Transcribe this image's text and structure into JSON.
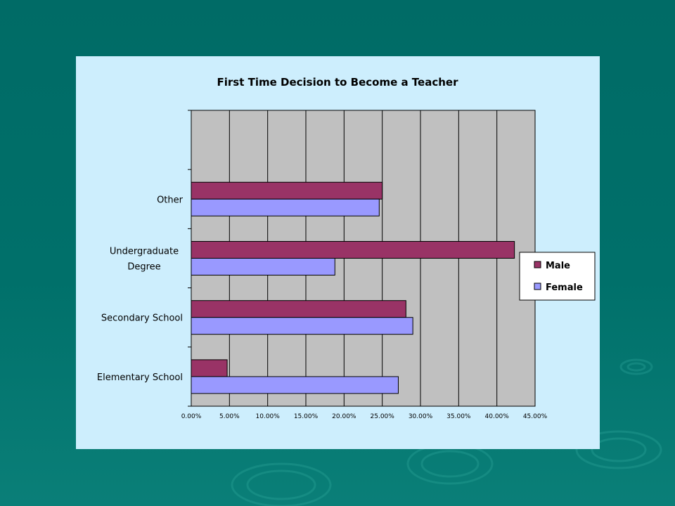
{
  "chart_data": {
    "type": "bar",
    "orientation": "horizontal",
    "title": "First Time Decision to Become a Teacher",
    "categories": [
      "Elementary School",
      "Secondary School",
      "Undergraduate Degree",
      "Other"
    ],
    "category_lines": [
      [
        "Elementary School"
      ],
      [
        "Secondary School"
      ],
      [
        "Undergraduate",
        "Degree"
      ],
      [
        "Other"
      ]
    ],
    "series": [
      {
        "name": "Male",
        "color": "#993366",
        "values": [
          4.7,
          28.1,
          42.3,
          25.0
        ]
      },
      {
        "name": "Female",
        "color": "#9999ff",
        "values": [
          27.1,
          29.0,
          18.8,
          24.6
        ]
      }
    ],
    "xlim": [
      0,
      45
    ],
    "xticks": [
      "0.00%",
      "5.00%",
      "10.00%",
      "15.00%",
      "20.00%",
      "25.00%",
      "30.00%",
      "35.00%",
      "40.00%",
      "45.00%"
    ],
    "grid": true,
    "legend_position": "right",
    "plot_background": "#c0c0c0"
  },
  "slide_colors": {
    "background": "#006b66",
    "panel": "#cdeefd"
  }
}
